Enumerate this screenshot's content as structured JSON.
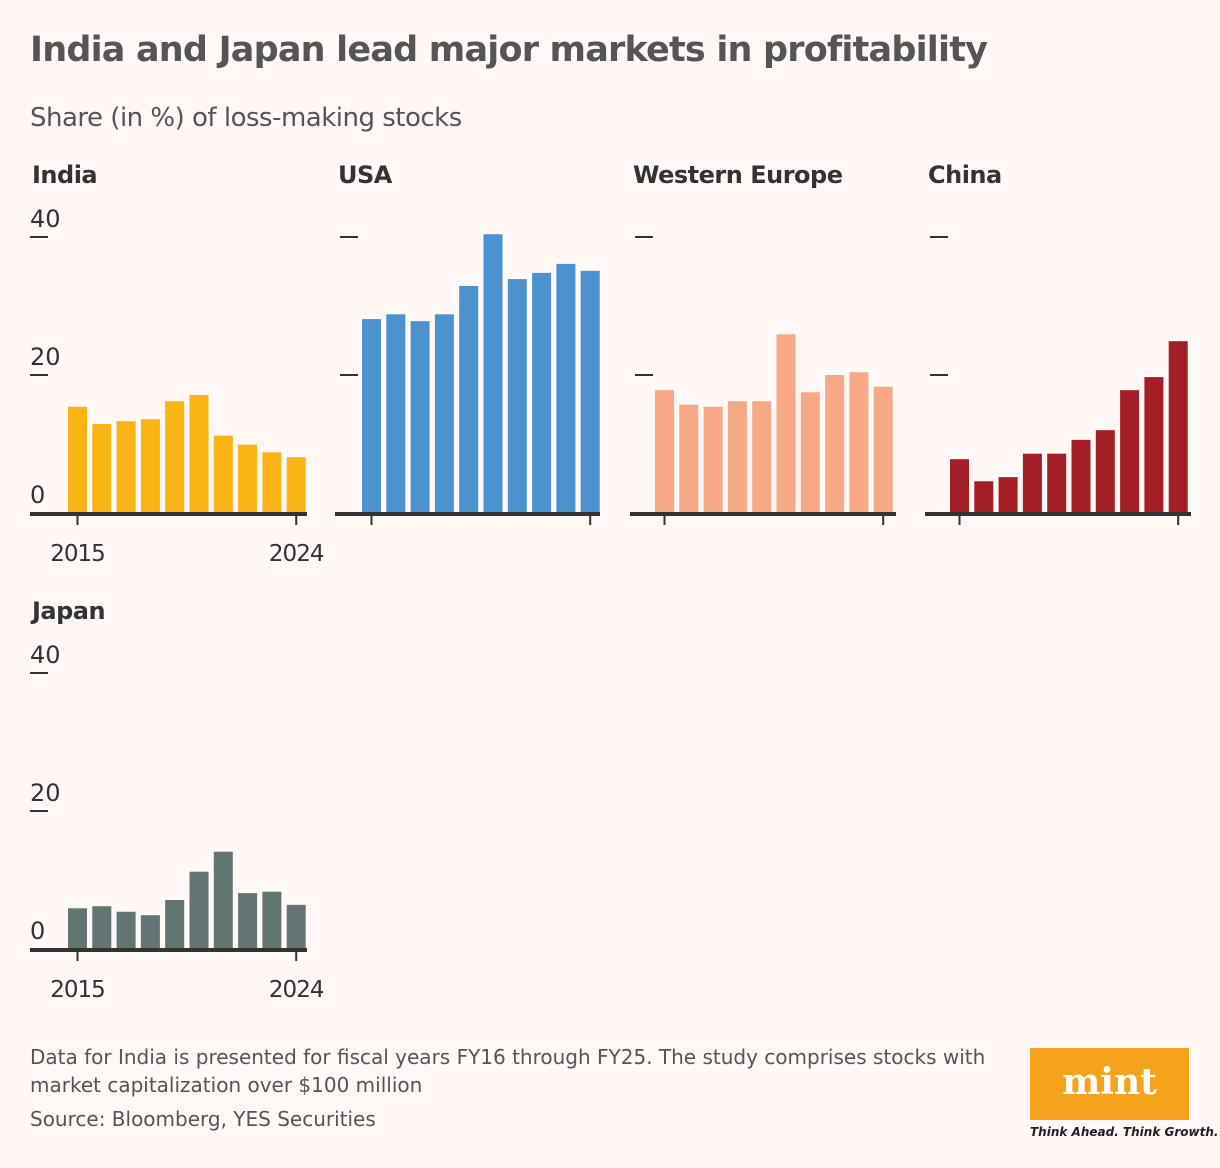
{
  "title": "India and Japan lead major markets in profitability",
  "subtitle": "Share (in %) of loss-making stocks",
  "chart_data": [
    {
      "type": "bar",
      "title": "India",
      "color": "#fbb415",
      "title_color": "#c08a00",
      "categories": [
        2015,
        2016,
        2017,
        2018,
        2019,
        2020,
        2021,
        2022,
        2023,
        2024
      ],
      "values": [
        15.4,
        12.9,
        13.3,
        13.6,
        16.2,
        17.1,
        11.2,
        9.9,
        8.8,
        8.1
      ],
      "ylim": [
        0,
        40
      ],
      "yticks": [
        "0",
        "20",
        "40"
      ],
      "xticks": [
        "2015",
        "2024"
      ]
    },
    {
      "type": "bar",
      "title": "USA",
      "color": "#4c92ce",
      "title_color": "#3a82c4",
      "categories": [
        2015,
        2016,
        2017,
        2018,
        2019,
        2020,
        2021,
        2022,
        2023,
        2024
      ],
      "values": [
        28.1,
        28.8,
        27.8,
        28.8,
        32.9,
        40.4,
        33.9,
        34.8,
        36.1,
        35.1
      ],
      "ylim": [
        0,
        40
      ]
    },
    {
      "type": "bar",
      "title": "Western Europe",
      "color": "#f7a985",
      "title_color": "#b0603c",
      "categories": [
        2015,
        2016,
        2017,
        2018,
        2019,
        2020,
        2021,
        2022,
        2023,
        2024
      ],
      "values": [
        17.8,
        15.7,
        15.4,
        16.2,
        16.2,
        25.9,
        17.5,
        20.0,
        20.4,
        18.3
      ],
      "ylim": [
        0,
        40
      ]
    },
    {
      "type": "bar",
      "title": "China",
      "color": "#a31f25",
      "title_color": "#a31f25",
      "categories": [
        2015,
        2016,
        2017,
        2018,
        2019,
        2020,
        2021,
        2022,
        2023,
        2024
      ],
      "values": [
        7.8,
        4.6,
        5.2,
        8.6,
        8.6,
        10.6,
        12.0,
        17.8,
        19.7,
        24.9
      ],
      "ylim": [
        0,
        40
      ]
    },
    {
      "type": "bar",
      "title": "Japan",
      "color": "#627573",
      "title_color": "#627573",
      "categories": [
        2015,
        2016,
        2017,
        2018,
        2019,
        2020,
        2021,
        2022,
        2023,
        2024
      ],
      "values": [
        5.9,
        6.2,
        5.4,
        4.9,
        7.1,
        11.2,
        14.1,
        8.1,
        8.3,
        6.4
      ],
      "ylim": [
        0,
        40
      ],
      "yticks": [
        "0",
        "20",
        "40"
      ],
      "xticks": [
        "2015",
        "2024"
      ]
    }
  ],
  "note": "Data for India is presented for fiscal years FY16 through FY25. The study comprises stocks with market capitalization over $100 million",
  "source": "Source: Bloomberg, YES Securities",
  "logo": {
    "text": "mint",
    "tagline": "Think Ahead. Think Growth.",
    "color": "#f7a21b"
  }
}
